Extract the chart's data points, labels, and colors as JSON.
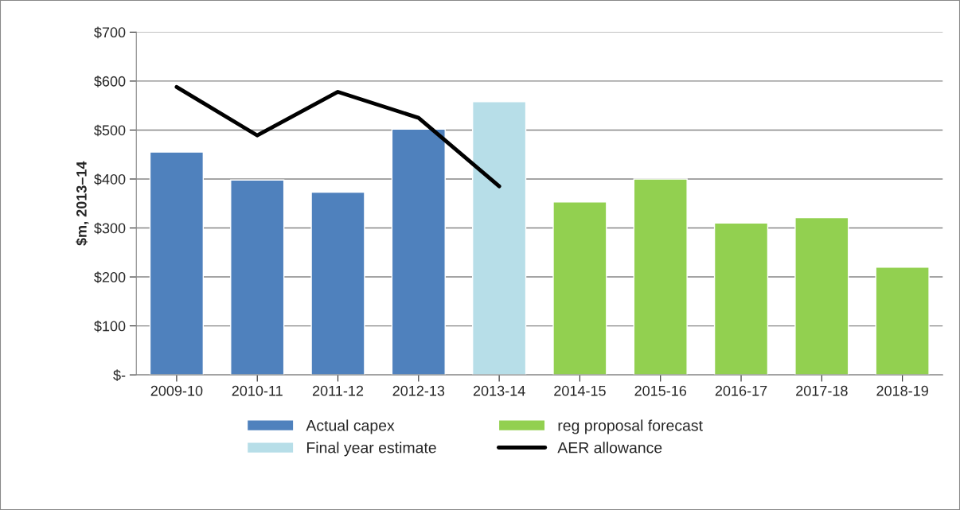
{
  "chart_data": {
    "type": "bar",
    "ylabel": "$m, 2013–14",
    "stacked": true,
    "categories": [
      "2009-10",
      "2010-11",
      "2011-12",
      "2012-13",
      "2013-14",
      "2014-15",
      "2015-16",
      "2016-17",
      "2017-18",
      "2018-19"
    ],
    "series": [
      {
        "name": "Actual capex",
        "color": "#4f81bd",
        "values": [
          455,
          398,
          373,
          502,
          null,
          null,
          null,
          null,
          null,
          null
        ]
      },
      {
        "name": "Final year estimate",
        "color": "#b7dee8",
        "values": [
          null,
          null,
          null,
          null,
          558,
          null,
          null,
          null,
          null,
          null
        ]
      },
      {
        "name": "reg proposal forecast",
        "color": "#92d050",
        "values": [
          null,
          null,
          null,
          null,
          null,
          353,
          400,
          310,
          321,
          220
        ]
      },
      {
        "name": "AER allowance",
        "type": "line",
        "color": "#000000",
        "values": [
          588,
          489,
          578,
          525,
          385,
          null,
          null,
          null,
          null,
          null
        ]
      }
    ],
    "ylim": [
      0,
      700
    ],
    "yticks": [
      {
        "value": 0,
        "label": "$-"
      },
      {
        "value": 100,
        "label": "$100"
      },
      {
        "value": 200,
        "label": "$200"
      },
      {
        "value": 300,
        "label": "$300"
      },
      {
        "value": 400,
        "label": "$400"
      },
      {
        "value": 500,
        "label": "$500"
      },
      {
        "value": 600,
        "label": "$600"
      },
      {
        "value": 700,
        "label": "$700"
      }
    ],
    "grid": "y",
    "legend": "bottom",
    "marker": "none",
    "line_style": "solid"
  }
}
